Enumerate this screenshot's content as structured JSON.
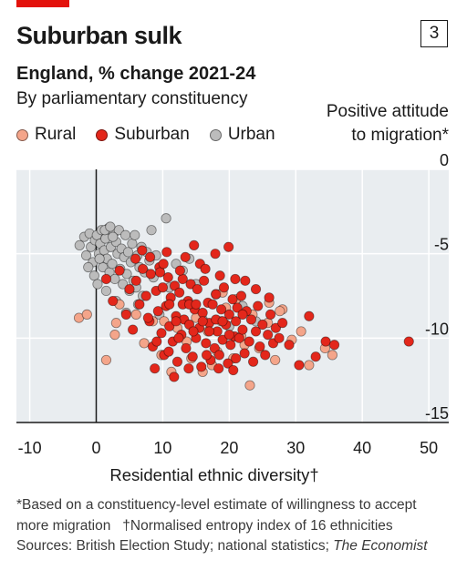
{
  "header": {
    "title": "Suburban sulk",
    "chart_number": "3",
    "subtitle": "England, % change 2021-24",
    "subsubtitle": "By parliamentary constituency"
  },
  "legend": [
    {
      "label": "Rural",
      "color": "#f4a58a"
    },
    {
      "label": "Suburban",
      "color": "#e3271b"
    },
    {
      "label": "Urban",
      "color": "#bcbcbc"
    }
  ],
  "footnotes": {
    "line1": "*Based on a constituency-level estimate of willingness to accept",
    "line2a": "more migration",
    "line2b": "†Normalised entropy index of 16 ethnicities",
    "line3a": "Sources: British Election Study; national statistics; ",
    "line3b": "The Economist"
  },
  "chart_data": {
    "type": "scatter",
    "xlabel": "Residential ethnic diversity†",
    "ylabel_line1": "Positive attitude",
    "ylabel_line2": "to migration*",
    "xlim": [
      -12,
      53
    ],
    "ylim": [
      -15,
      0
    ],
    "x_ticks": [
      "-10",
      "0",
      "10",
      "20",
      "30",
      "40",
      "50"
    ],
    "y_ticks": [
      "0",
      "-5",
      "-10",
      "-15"
    ],
    "grid": true,
    "series": [
      {
        "name": "Urban",
        "color": "#bcbcbc",
        "points": [
          [
            -2.5,
            -4.5
          ],
          [
            -1.8,
            -4.0
          ],
          [
            -1.5,
            -5.1
          ],
          [
            -1.0,
            -3.8
          ],
          [
            -0.8,
            -4.6
          ],
          [
            -0.5,
            -5.5
          ],
          [
            -0.2,
            -4.2
          ],
          [
            0.1,
            -3.9
          ],
          [
            0.4,
            -5.0
          ],
          [
            0.6,
            -4.4
          ],
          [
            0.8,
            -3.6
          ],
          [
            1.0,
            -5.8
          ],
          [
            1.2,
            -4.8
          ],
          [
            1.4,
            -4.1
          ],
          [
            1.6,
            -5.3
          ],
          [
            1.8,
            -3.5
          ],
          [
            2.0,
            -6.1
          ],
          [
            2.2,
            -4.6
          ],
          [
            2.4,
            -5.6
          ],
          [
            2.6,
            -3.8
          ],
          [
            2.8,
            -6.5
          ],
          [
            3.0,
            -4.3
          ],
          [
            3.2,
            -5.0
          ],
          [
            3.4,
            -3.6
          ],
          [
            3.6,
            -5.9
          ],
          [
            3.8,
            -4.7
          ],
          [
            4.0,
            -6.8
          ],
          [
            4.2,
            -5.2
          ],
          [
            4.4,
            -3.9
          ],
          [
            4.6,
            -6.2
          ],
          [
            4.8,
            -4.9
          ],
          [
            5.0,
            -7.2
          ],
          [
            5.2,
            -5.5
          ],
          [
            5.4,
            -4.4
          ],
          [
            5.6,
            -6.6
          ],
          [
            5.8,
            -3.9
          ],
          [
            6.0,
            -7.0
          ],
          [
            6.2,
            -5.1
          ],
          [
            6.5,
            -5.8
          ],
          [
            6.8,
            -4.6
          ],
          [
            7.0,
            -7.5
          ],
          [
            7.3,
            -6.1
          ],
          [
            7.6,
            -4.9
          ],
          [
            8.0,
            -5.4
          ],
          [
            8.3,
            -3.6
          ],
          [
            8.6,
            -6.4
          ],
          [
            9.0,
            -5.1
          ],
          [
            10.5,
            -2.9
          ],
          [
            14.0,
            -5.3
          ],
          [
            13.0,
            -6.0
          ],
          [
            15.0,
            -6.8
          ],
          [
            12.0,
            -5.6
          ],
          [
            18.0,
            -7.4
          ],
          [
            22.0,
            -8.1
          ],
          [
            -0.3,
            -6.3
          ],
          [
            0.2,
            -6.8
          ],
          [
            3.0,
            -7.8
          ],
          [
            1.5,
            -7.2
          ],
          [
            2.5,
            -4.0
          ],
          [
            0.5,
            -5.3
          ],
          [
            4.5,
            -8.5
          ],
          [
            6.3,
            -8.0
          ],
          [
            9.5,
            -8.6
          ],
          [
            11.0,
            -7.0
          ],
          [
            16.0,
            -8.9
          ],
          [
            20.0,
            -9.3
          ],
          [
            24.0,
            -9.0
          ],
          [
            1.3,
            -3.6
          ],
          [
            2.1,
            -3.4
          ],
          [
            -1.2,
            -5.8
          ]
        ]
      },
      {
        "name": "Rural",
        "color": "#f4a58a",
        "points": [
          [
            -2.6,
            -8.8
          ],
          [
            -1.4,
            -8.6
          ],
          [
            1.5,
            -11.3
          ],
          [
            3.0,
            -9.1
          ],
          [
            3.5,
            -8.0
          ],
          [
            2.8,
            -9.8
          ],
          [
            6.0,
            -8.6
          ],
          [
            7.2,
            -10.3
          ],
          [
            8.5,
            -9.0
          ],
          [
            9.8,
            -11.0
          ],
          [
            11.3,
            -12.0
          ],
          [
            13.6,
            -10.2
          ],
          [
            15.0,
            -8.8
          ],
          [
            16.8,
            -9.6
          ],
          [
            18.2,
            -10.8
          ],
          [
            19.5,
            -8.2
          ],
          [
            20.6,
            -11.2
          ],
          [
            21.8,
            -9.9
          ],
          [
            23.1,
            -12.8
          ],
          [
            24.5,
            -10.6
          ],
          [
            25.8,
            -9.1
          ],
          [
            26.9,
            -11.3
          ],
          [
            28.0,
            -8.3
          ],
          [
            29.4,
            -10.1
          ],
          [
            30.8,
            -9.6
          ],
          [
            32.0,
            -11.6
          ],
          [
            35.5,
            -11.0
          ],
          [
            34.4,
            -10.6
          ],
          [
            23.5,
            -8.6
          ],
          [
            19.0,
            -7.3
          ],
          [
            17.4,
            -11.6
          ],
          [
            14.3,
            -11.2
          ],
          [
            12.2,
            -9.4
          ],
          [
            27.6,
            -8.4
          ],
          [
            26.0,
            -7.9
          ],
          [
            21.0,
            -7.7
          ],
          [
            10.2,
            -9.0
          ],
          [
            18.8,
            -9.0
          ],
          [
            22.3,
            -10.4
          ],
          [
            16.0,
            -12.0
          ]
        ]
      },
      {
        "name": "Suburban",
        "color": "#e3271b",
        "points": [
          [
            1.5,
            -6.5
          ],
          [
            2.5,
            -7.8
          ],
          [
            3.5,
            -6.0
          ],
          [
            4.5,
            -8.6
          ],
          [
            5.0,
            -7.1
          ],
          [
            5.5,
            -9.5
          ],
          [
            6.0,
            -6.6
          ],
          [
            6.5,
            -8.0
          ],
          [
            7.0,
            -5.9
          ],
          [
            7.5,
            -7.5
          ],
          [
            8.0,
            -9.0
          ],
          [
            8.2,
            -6.2
          ],
          [
            8.5,
            -10.5
          ],
          [
            9.0,
            -7.2
          ],
          [
            9.3,
            -8.4
          ],
          [
            9.5,
            -5.8
          ],
          [
            9.8,
            -9.7
          ],
          [
            10.0,
            -7.0
          ],
          [
            10.2,
            -11.0
          ],
          [
            10.5,
            -8.1
          ],
          [
            10.8,
            -6.4
          ],
          [
            11.0,
            -9.3
          ],
          [
            11.2,
            -7.6
          ],
          [
            11.5,
            -10.2
          ],
          [
            11.8,
            -6.9
          ],
          [
            12.0,
            -8.7
          ],
          [
            12.2,
            -11.4
          ],
          [
            12.5,
            -7.3
          ],
          [
            12.8,
            -9.8
          ],
          [
            13.0,
            -6.5
          ],
          [
            13.2,
            -8.9
          ],
          [
            13.5,
            -10.6
          ],
          [
            13.8,
            -7.8
          ],
          [
            14.0,
            -9.2
          ],
          [
            14.2,
            -6.8
          ],
          [
            14.5,
            -11.1
          ],
          [
            14.8,
            -8.3
          ],
          [
            15.0,
            -10.0
          ],
          [
            15.2,
            -7.1
          ],
          [
            15.5,
            -9.4
          ],
          [
            15.8,
            -11.7
          ],
          [
            16.0,
            -8.5
          ],
          [
            16.2,
            -6.6
          ],
          [
            16.5,
            -10.3
          ],
          [
            16.8,
            -7.9
          ],
          [
            17.0,
            -9.1
          ],
          [
            17.2,
            -11.3
          ],
          [
            17.5,
            -8.0
          ],
          [
            17.8,
            -10.6
          ],
          [
            18.0,
            -7.4
          ],
          [
            18.2,
            -9.6
          ],
          [
            18.5,
            -11.0
          ],
          [
            18.8,
            -8.3
          ],
          [
            19.0,
            -10.1
          ],
          [
            19.2,
            -7.0
          ],
          [
            19.5,
            -9.2
          ],
          [
            19.8,
            -11.5
          ],
          [
            20.0,
            -8.6
          ],
          [
            20.2,
            -10.4
          ],
          [
            20.5,
            -7.7
          ],
          [
            20.8,
            -9.9
          ],
          [
            21.0,
            -11.2
          ],
          [
            21.2,
            -8.2
          ],
          [
            21.5,
            -10.0
          ],
          [
            21.8,
            -7.5
          ],
          [
            22.0,
            -9.5
          ],
          [
            22.3,
            -10.9
          ],
          [
            22.6,
            -8.4
          ],
          [
            23.0,
            -10.2
          ],
          [
            23.3,
            -8.9
          ],
          [
            23.6,
            -11.4
          ],
          [
            24.0,
            -9.6
          ],
          [
            24.3,
            -8.1
          ],
          [
            24.6,
            -10.5
          ],
          [
            25.0,
            -9.2
          ],
          [
            25.4,
            -11.0
          ],
          [
            25.8,
            -9.8
          ],
          [
            26.2,
            -8.6
          ],
          [
            26.6,
            -10.3
          ],
          [
            27.0,
            -9.4
          ],
          [
            27.5,
            -10.0
          ],
          [
            28.0,
            -9.1
          ],
          [
            29.0,
            -10.4
          ],
          [
            30.5,
            -11.6
          ],
          [
            32.0,
            -8.7
          ],
          [
            33.0,
            -11.1
          ],
          [
            34.5,
            -10.2
          ],
          [
            35.8,
            -10.4
          ],
          [
            47.0,
            -10.2
          ],
          [
            8.8,
            -11.8
          ],
          [
            11.7,
            -12.3
          ],
          [
            7.8,
            -8.8
          ],
          [
            9.6,
            -6.1
          ],
          [
            13.4,
            -5.2
          ],
          [
            15.6,
            -5.6
          ],
          [
            17.9,
            -5.0
          ],
          [
            19.9,
            -4.6
          ],
          [
            6.9,
            -4.8
          ],
          [
            10.6,
            -4.9
          ],
          [
            14.7,
            -4.5
          ],
          [
            12.6,
            -6.0
          ],
          [
            10.1,
            -5.6
          ],
          [
            16.4,
            -5.9
          ],
          [
            18.6,
            -6.3
          ],
          [
            20.9,
            -6.5
          ],
          [
            22.4,
            -6.6
          ],
          [
            24.0,
            -7.1
          ],
          [
            26.0,
            -7.6
          ],
          [
            8.1,
            -5.2
          ],
          [
            5.9,
            -5.3
          ],
          [
            11.0,
            -8.0
          ],
          [
            12.0,
            -9.0
          ],
          [
            13.0,
            -8.0
          ],
          [
            14.0,
            -8.0
          ],
          [
            15.0,
            -8.0
          ],
          [
            16.0,
            -9.0
          ],
          [
            17.0,
            -9.6
          ],
          [
            18.0,
            -8.9
          ],
          [
            19.0,
            -9.0
          ],
          [
            20.0,
            -9.8
          ],
          [
            21.0,
            -9.0
          ],
          [
            22.0,
            -8.6
          ],
          [
            12.4,
            -10.0
          ],
          [
            14.6,
            -9.6
          ],
          [
            16.6,
            -11.0
          ],
          [
            18.4,
            -11.8
          ],
          [
            20.6,
            -11.9
          ],
          [
            9.1,
            -10.2
          ],
          [
            10.9,
            -10.8
          ],
          [
            13.9,
            -11.8
          ]
        ]
      }
    ]
  }
}
